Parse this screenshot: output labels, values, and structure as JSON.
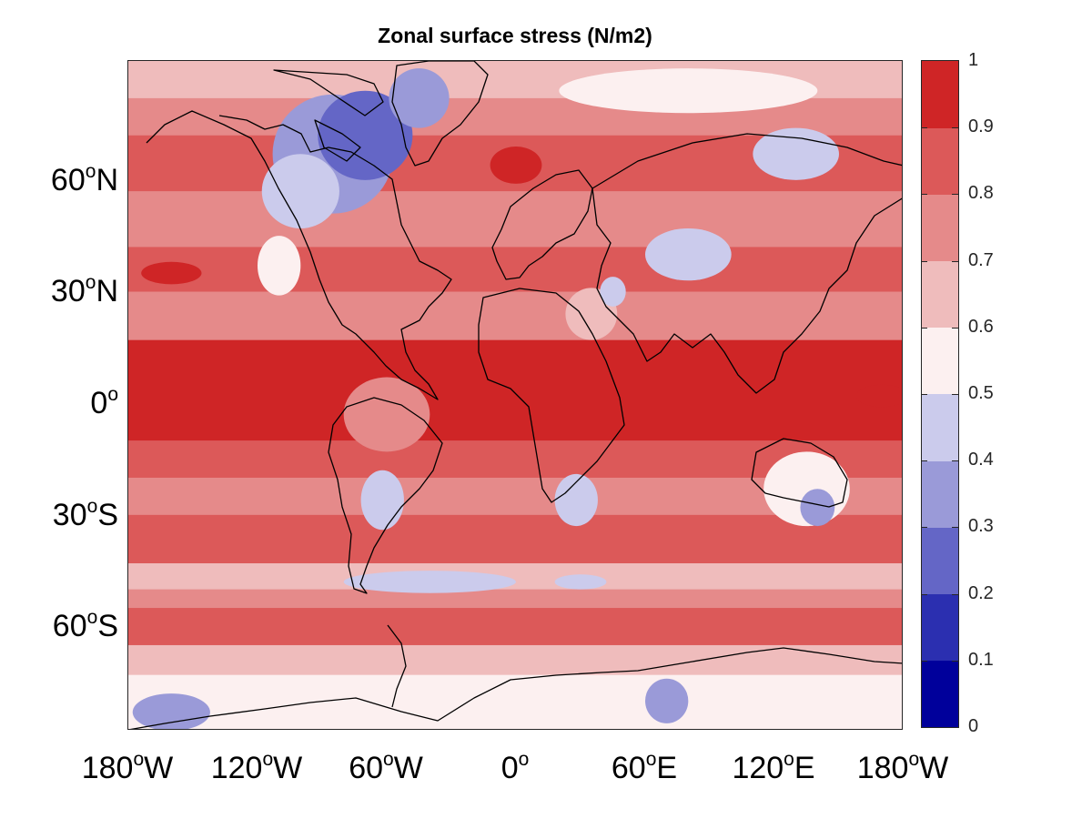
{
  "chart_data": {
    "type": "heatmap",
    "title": "Zonal surface stress (N/m2)",
    "xlabel": "",
    "ylabel": "",
    "x_ticks": [
      {
        "lon": -180,
        "main": "180",
        "deg": "o",
        "hemi": "W"
      },
      {
        "lon": -120,
        "main": "120",
        "deg": "o",
        "hemi": "W"
      },
      {
        "lon": -60,
        "main": "60",
        "deg": "o",
        "hemi": "W"
      },
      {
        "lon": 0,
        "main": "0",
        "deg": "o",
        "hemi": ""
      },
      {
        "lon": 60,
        "main": "60",
        "deg": "o",
        "hemi": "E"
      },
      {
        "lon": 120,
        "main": "120",
        "deg": "o",
        "hemi": "E"
      },
      {
        "lon": 180,
        "main": "180",
        "deg": "o",
        "hemi": "W"
      }
    ],
    "y_ticks": [
      {
        "lat": 60,
        "main": "60",
        "deg": "o",
        "hemi": "N"
      },
      {
        "lat": 30,
        "main": "30",
        "deg": "o",
        "hemi": "N"
      },
      {
        "lat": 0,
        "main": "0",
        "deg": "o",
        "hemi": ""
      },
      {
        "lat": -30,
        "main": "30",
        "deg": "o",
        "hemi": "S"
      },
      {
        "lat": -60,
        "main": "60",
        "deg": "o",
        "hemi": "S"
      }
    ],
    "xlim": [
      -180,
      180
    ],
    "ylim": [
      -90,
      90
    ],
    "colorbar": {
      "ticks": [
        "0",
        "0.1",
        "0.2",
        "0.3",
        "0.4",
        "0.5",
        "0.6",
        "0.7",
        "0.8",
        "0.9",
        "1"
      ],
      "range": [
        0,
        1
      ],
      "levels": [
        {
          "from": 0.0,
          "to": 0.1,
          "color": "#00009b"
        },
        {
          "from": 0.1,
          "to": 0.2,
          "color": "#2b2fb0"
        },
        {
          "from": 0.2,
          "to": 0.3,
          "color": "#6466c6"
        },
        {
          "from": 0.3,
          "to": 0.4,
          "color": "#9a9ad8"
        },
        {
          "from": 0.4,
          "to": 0.5,
          "color": "#cbcbec"
        },
        {
          "from": 0.5,
          "to": 0.6,
          "color": "#fcf0f0"
        },
        {
          "from": 0.6,
          "to": 0.7,
          "color": "#efbcbc"
        },
        {
          "from": 0.7,
          "to": 0.8,
          "color": "#e58a8a"
        },
        {
          "from": 0.8,
          "to": 0.9,
          "color": "#dc5959"
        },
        {
          "from": 0.9,
          "to": 1.0,
          "color": "#cf2526"
        }
      ]
    },
    "zonal_bands": [
      {
        "lat_from": 90,
        "lat_to": 80,
        "value": 0.65
      },
      {
        "lat_from": 80,
        "lat_to": 70,
        "value": 0.75
      },
      {
        "lat_from": 70,
        "lat_to": 55,
        "value": 0.8
      },
      {
        "lat_from": 55,
        "lat_to": 40,
        "value": 0.75
      },
      {
        "lat_from": 40,
        "lat_to": 28,
        "value": 0.8
      },
      {
        "lat_from": 28,
        "lat_to": 15,
        "value": 0.75
      },
      {
        "lat_from": 15,
        "lat_to": -12,
        "value": 0.9
      },
      {
        "lat_from": -12,
        "lat_to": -22,
        "value": 0.8
      },
      {
        "lat_from": -22,
        "lat_to": -32,
        "value": 0.7
      },
      {
        "lat_from": -32,
        "lat_to": -45,
        "value": 0.8
      },
      {
        "lat_from": -45,
        "lat_to": -52,
        "value": 0.6
      },
      {
        "lat_from": -52,
        "lat_to": -57,
        "value": 0.7
      },
      {
        "lat_from": -57,
        "lat_to": -67,
        "value": 0.8
      },
      {
        "lat_from": -67,
        "lat_to": -75,
        "value": 0.65
      },
      {
        "lat_from": -75,
        "lat_to": -90,
        "value": 0.55
      }
    ],
    "patches": [
      {
        "lon": -85,
        "lat": 65,
        "rlon": 28,
        "rlat": 16,
        "value": 0.3
      },
      {
        "lon": -70,
        "lat": 70,
        "rlon": 22,
        "rlat": 12,
        "value": 0.2
      },
      {
        "lon": -100,
        "lat": 55,
        "rlon": 18,
        "rlat": 10,
        "value": 0.45
      },
      {
        "lon": -45,
        "lat": 80,
        "rlon": 14,
        "rlat": 8,
        "value": 0.35
      },
      {
        "lon": 0,
        "lat": 62,
        "rlon": 12,
        "rlat": 5,
        "value": 0.95
      },
      {
        "lon": 80,
        "lat": 82,
        "rlon": 60,
        "rlat": 6,
        "value": 0.55
      },
      {
        "lon": 130,
        "lat": 65,
        "rlon": 20,
        "rlat": 7,
        "value": 0.45
      },
      {
        "lon": 80,
        "lat": 38,
        "rlon": 20,
        "rlat": 7,
        "value": 0.45
      },
      {
        "lon": 35,
        "lat": 22,
        "rlon": 12,
        "rlat": 7,
        "value": 0.6
      },
      {
        "lon": 45,
        "lat": 28,
        "rlon": 6,
        "rlat": 4,
        "value": 0.4
      },
      {
        "lon": -160,
        "lat": 33,
        "rlon": 14,
        "rlat": 3,
        "value": 0.9
      },
      {
        "lon": -110,
        "lat": 35,
        "rlon": 10,
        "rlat": 8,
        "value": 0.55
      },
      {
        "lon": -60,
        "lat": -5,
        "rlon": 20,
        "rlat": 10,
        "value": 0.7
      },
      {
        "lon": -62,
        "lat": -28,
        "rlon": 10,
        "rlat": 8,
        "value": 0.45
      },
      {
        "lon": 28,
        "lat": -28,
        "rlon": 10,
        "rlat": 7,
        "value": 0.4
      },
      {
        "lon": 135,
        "lat": -25,
        "rlon": 20,
        "rlat": 10,
        "value": 0.55
      },
      {
        "lon": 140,
        "lat": -30,
        "rlon": 8,
        "rlat": 5,
        "value": 0.35
      },
      {
        "lon": 170,
        "lat": 0,
        "rlon": 12,
        "rlat": 3,
        "value": 0.95
      },
      {
        "lon": -160,
        "lat": -85,
        "rlon": 18,
        "rlat": 5,
        "value": 0.3
      },
      {
        "lon": 70,
        "lat": -82,
        "rlon": 10,
        "rlat": 6,
        "value": 0.3
      },
      {
        "lon": -40,
        "lat": -50,
        "rlon": 40,
        "rlat": 3,
        "value": 0.45
      },
      {
        "lon": 30,
        "lat": -50,
        "rlon": 12,
        "rlat": 2,
        "value": 0.45
      }
    ]
  }
}
